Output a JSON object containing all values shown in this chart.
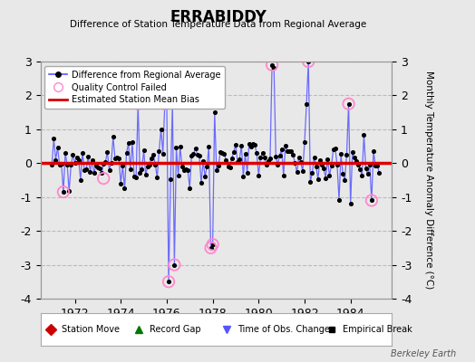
{
  "title": "ERRABIDDY",
  "subtitle": "Difference of Station Temperature Data from Regional Average",
  "ylabel": "Monthly Temperature Anomaly Difference (°C)",
  "credit": "Berkeley Earth",
  "xlabel_years": [
    1972,
    1974,
    1976,
    1978,
    1980,
    1982,
    1984
  ],
  "ylim": [
    -4,
    3
  ],
  "xlim": [
    1970.5,
    1985.8
  ],
  "bias_value": 0.0,
  "line_color": "#5555ff",
  "dot_color": "#000000",
  "bias_color": "#dd0000",
  "qc_color": "#ff88cc",
  "bg_color": "#e8e8e8",
  "plot_bg": "#e8e8e8",
  "grid_color": "#bbbbbb",
  "yticks": [
    -4,
    -3,
    -2,
    -1,
    0,
    1,
    2,
    3
  ],
  "time_series": [
    [
      1970.917,
      -0.9
    ],
    [
      1971.0,
      -0.5
    ],
    [
      1971.083,
      0.6
    ],
    [
      1971.167,
      0.7
    ],
    [
      1971.25,
      0.3
    ],
    [
      1971.333,
      -0.5
    ],
    [
      1971.417,
      -0.4
    ],
    [
      1971.5,
      -0.85
    ],
    [
      1971.583,
      0.6
    ],
    [
      1971.667,
      0.75
    ],
    [
      1971.75,
      0.55
    ],
    [
      1971.833,
      0.1
    ],
    [
      1971.917,
      0.4
    ],
    [
      1972.0,
      -0.5
    ],
    [
      1972.083,
      -0.55
    ],
    [
      1972.167,
      0.55
    ],
    [
      1972.25,
      0.7
    ],
    [
      1972.333,
      0.55
    ],
    [
      1972.417,
      0.55
    ],
    [
      1972.5,
      0.3
    ],
    [
      1972.583,
      -0.3
    ],
    [
      1972.667,
      -0.5
    ],
    [
      1972.75,
      -0.45
    ],
    [
      1972.833,
      0.65
    ],
    [
      1972.917,
      0.7
    ],
    [
      1973.0,
      0.6
    ],
    [
      1973.083,
      0.55
    ],
    [
      1973.167,
      -0.5
    ],
    [
      1973.25,
      -0.45
    ],
    [
      1973.333,
      0.55
    ],
    [
      1973.417,
      0.7
    ],
    [
      1973.5,
      0.75
    ],
    [
      1973.583,
      -0.5
    ],
    [
      1973.667,
      -0.55
    ],
    [
      1973.75,
      -0.5
    ],
    [
      1973.833,
      0.65
    ],
    [
      1973.917,
      0.6
    ],
    [
      1974.0,
      0.7
    ],
    [
      1974.083,
      0.6
    ],
    [
      1974.167,
      -0.5
    ],
    [
      1974.25,
      -0.55
    ],
    [
      1974.333,
      0.5
    ],
    [
      1974.417,
      0.55
    ],
    [
      1974.5,
      -0.5
    ],
    [
      1974.583,
      -0.55
    ],
    [
      1974.667,
      0.6
    ],
    [
      1974.75,
      1.75
    ],
    [
      1974.833,
      0.55
    ],
    [
      1974.917,
      -0.5
    ],
    [
      1975.0,
      -0.5
    ],
    [
      1975.083,
      0.55
    ],
    [
      1975.167,
      0.6
    ],
    [
      1975.25,
      0.5
    ],
    [
      1975.333,
      -0.45
    ],
    [
      1975.417,
      -0.5
    ],
    [
      1975.5,
      0.6
    ],
    [
      1975.583,
      0.55
    ],
    [
      1975.667,
      -0.5
    ],
    [
      1975.75,
      -0.5
    ],
    [
      1975.833,
      0.6
    ],
    [
      1975.917,
      1.75
    ],
    [
      1976.0,
      1.8
    ],
    [
      1976.083,
      -3.5
    ],
    [
      1976.167,
      0.5
    ],
    [
      1976.25,
      1.75
    ],
    [
      1976.333,
      -3.0
    ],
    [
      1976.417,
      0.5
    ],
    [
      1976.5,
      0.55
    ],
    [
      1976.583,
      -0.45
    ],
    [
      1976.667,
      -0.5
    ],
    [
      1976.75,
      0.6
    ],
    [
      1976.833,
      0.55
    ],
    [
      1976.917,
      -0.5
    ],
    [
      1977.0,
      -0.5
    ],
    [
      1977.083,
      0.55
    ],
    [
      1977.167,
      0.6
    ],
    [
      1977.25,
      0.55
    ],
    [
      1977.333,
      -0.5
    ],
    [
      1977.417,
      -0.5
    ],
    [
      1977.5,
      0.55
    ],
    [
      1977.583,
      1.5
    ],
    [
      1977.667,
      -0.45
    ],
    [
      1977.75,
      -0.5
    ],
    [
      1977.833,
      0.55
    ],
    [
      1977.917,
      -2.5
    ],
    [
      1978.0,
      -2.4
    ],
    [
      1978.083,
      1.5
    ],
    [
      1978.167,
      -0.45
    ],
    [
      1978.25,
      -0.5
    ],
    [
      1978.333,
      0.55
    ],
    [
      1978.417,
      0.6
    ],
    [
      1978.5,
      -0.5
    ],
    [
      1978.583,
      -0.5
    ],
    [
      1978.667,
      0.6
    ],
    [
      1978.75,
      0.55
    ],
    [
      1978.833,
      -0.5
    ],
    [
      1978.917,
      -0.5
    ],
    [
      1979.0,
      0.55
    ],
    [
      1979.083,
      0.6
    ],
    [
      1979.167,
      -0.45
    ],
    [
      1979.25,
      -0.5
    ],
    [
      1979.333,
      0.6
    ],
    [
      1979.417,
      0.55
    ],
    [
      1979.5,
      -0.5
    ],
    [
      1979.583,
      -0.5
    ],
    [
      1979.667,
      0.55
    ],
    [
      1979.75,
      0.6
    ],
    [
      1979.833,
      -0.45
    ],
    [
      1979.917,
      -0.5
    ],
    [
      1980.0,
      0.55
    ],
    [
      1980.083,
      0.85
    ],
    [
      1980.167,
      0.6
    ],
    [
      1980.25,
      -0.45
    ],
    [
      1980.333,
      -0.5
    ],
    [
      1980.417,
      0.55
    ],
    [
      1980.5,
      0.6
    ],
    [
      1980.583,
      2.9
    ],
    [
      1980.667,
      2.8
    ],
    [
      1980.75,
      -0.45
    ],
    [
      1980.833,
      -0.5
    ],
    [
      1980.917,
      0.55
    ],
    [
      1981.0,
      0.6
    ],
    [
      1981.083,
      0.7
    ],
    [
      1981.167,
      -0.5
    ],
    [
      1981.25,
      -0.5
    ],
    [
      1981.333,
      0.55
    ],
    [
      1981.417,
      0.6
    ],
    [
      1981.5,
      -0.5
    ],
    [
      1981.583,
      -0.5
    ],
    [
      1981.667,
      0.55
    ],
    [
      1981.75,
      0.6
    ],
    [
      1981.833,
      -0.5
    ],
    [
      1981.917,
      -0.5
    ],
    [
      1982.0,
      0.55
    ],
    [
      1982.083,
      1.75
    ],
    [
      1982.167,
      3.0
    ],
    [
      1982.25,
      0.55
    ],
    [
      1982.333,
      -0.5
    ],
    [
      1982.417,
      -0.5
    ],
    [
      1982.5,
      0.6
    ],
    [
      1982.583,
      0.55
    ],
    [
      1982.667,
      -0.5
    ],
    [
      1982.75,
      -0.5
    ],
    [
      1982.833,
      0.6
    ],
    [
      1982.917,
      0.55
    ],
    [
      1983.0,
      -0.5
    ],
    [
      1983.083,
      -0.5
    ],
    [
      1983.167,
      0.6
    ],
    [
      1983.25,
      0.55
    ],
    [
      1983.333,
      -0.5
    ],
    [
      1983.417,
      -0.5
    ],
    [
      1983.5,
      0.6
    ],
    [
      1983.583,
      0.55
    ],
    [
      1983.667,
      -0.5
    ],
    [
      1983.75,
      -0.5
    ],
    [
      1983.833,
      0.6
    ],
    [
      1983.917,
      1.75
    ],
    [
      1984.0,
      -1.2
    ],
    [
      1984.083,
      0.55
    ],
    [
      1984.167,
      0.6
    ],
    [
      1984.25,
      -0.5
    ],
    [
      1984.333,
      -0.5
    ],
    [
      1984.417,
      0.55
    ],
    [
      1984.5,
      0.6
    ],
    [
      1984.583,
      -0.5
    ],
    [
      1984.667,
      -0.5
    ],
    [
      1984.75,
      0.3
    ],
    [
      1984.833,
      -0.3
    ],
    [
      1984.917,
      -1.1
    ],
    [
      1985.0,
      -0.2
    ],
    [
      1985.083,
      0.1
    ],
    [
      1985.167,
      0.3
    ]
  ],
  "qc_failed": [
    [
      1971.5,
      -0.85
    ],
    [
      1973.25,
      -0.45
    ],
    [
      1974.75,
      1.75
    ],
    [
      1975.917,
      1.75
    ],
    [
      1976.083,
      -3.5
    ],
    [
      1976.333,
      -3.0
    ],
    [
      1977.917,
      -2.5
    ],
    [
      1978.0,
      -2.4
    ],
    [
      1980.583,
      2.9
    ],
    [
      1982.167,
      3.0
    ],
    [
      1983.917,
      1.75
    ],
    [
      1984.917,
      -1.1
    ]
  ]
}
